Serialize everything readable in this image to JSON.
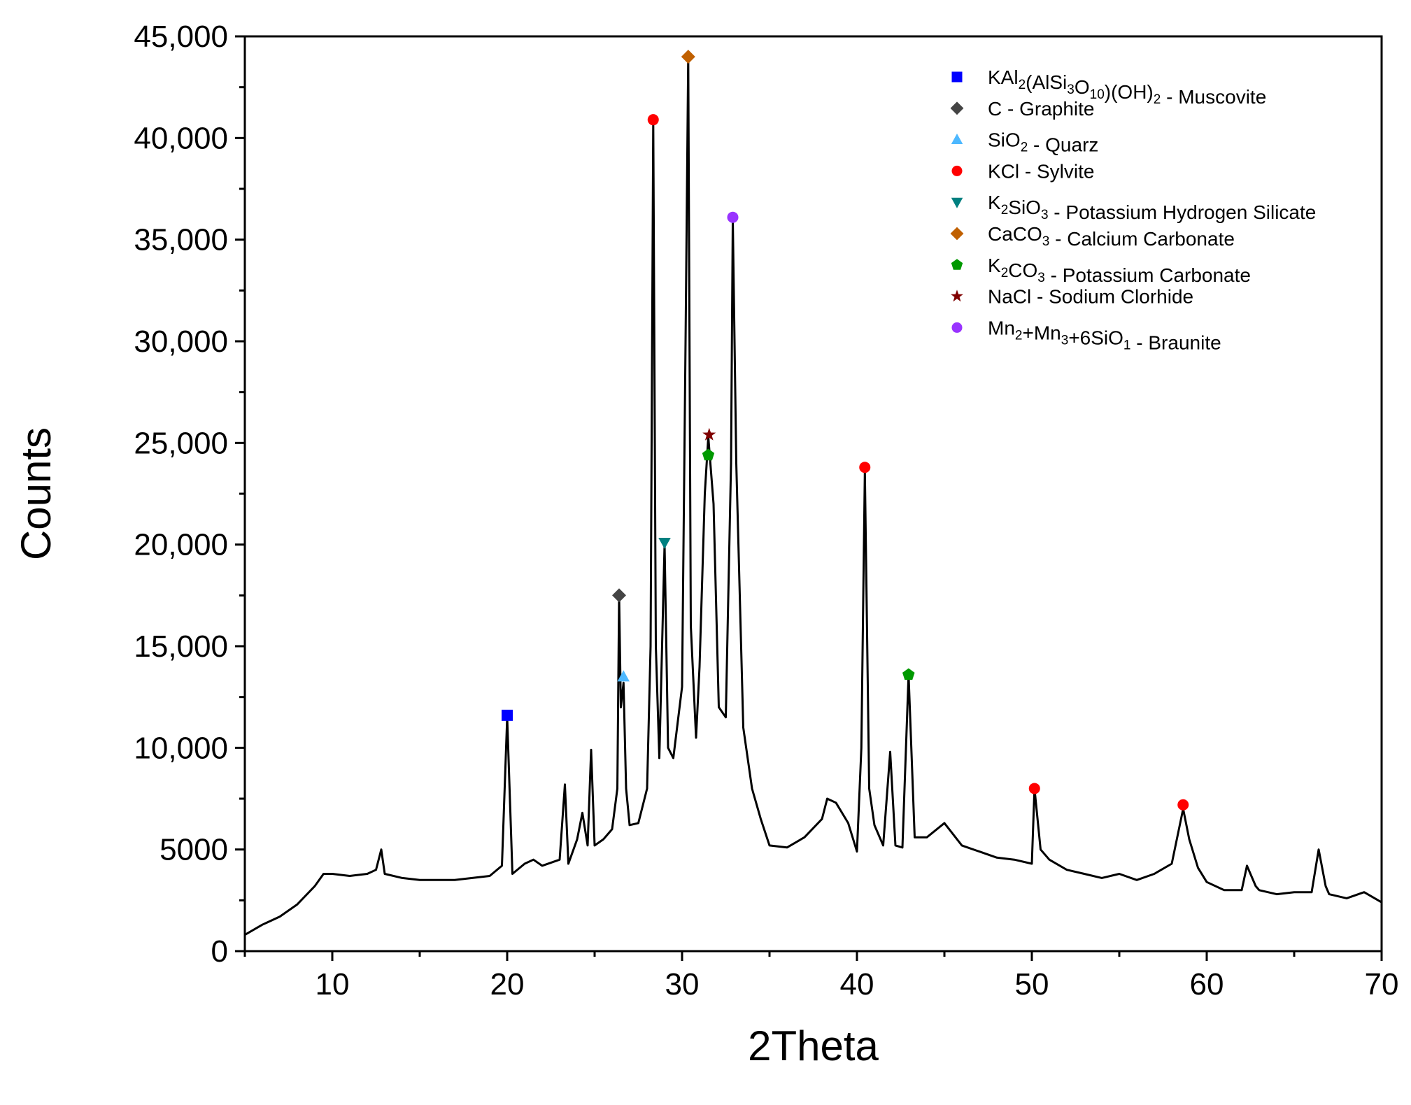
{
  "chart_data": {
    "type": "line",
    "xlabel": "2Theta",
    "ylabel": "Counts",
    "xlim": [
      5,
      70
    ],
    "ylim": [
      0,
      45000
    ],
    "x_ticks": [
      10,
      20,
      30,
      40,
      50,
      60,
      70
    ],
    "x_tick_labels": [
      "10",
      "20",
      "30",
      "40",
      "50",
      "60",
      "70"
    ],
    "y_ticks": [
      0,
      5000,
      10000,
      15000,
      20000,
      25000,
      30000,
      35000,
      40000,
      45000
    ],
    "y_tick_labels": [
      "0",
      "5000",
      "10,000",
      "15,000",
      "20,000",
      "25,000",
      "30,000",
      "35,000",
      "40,000",
      "45,000"
    ],
    "grid": false,
    "legend_position": "top-right",
    "line_color": "#000000",
    "series": [
      {
        "x": [
          5,
          6,
          7,
          8,
          9,
          9.5,
          10,
          11,
          12,
          12.5,
          12.8,
          13,
          14,
          15,
          16,
          17,
          18,
          19,
          19.7,
          20,
          20.3,
          21,
          21.5,
          22,
          23,
          23.3,
          23.5,
          24,
          24.3,
          24.6,
          24.8,
          25,
          25.5,
          26,
          26.3,
          26.4,
          26.5,
          26.65,
          26.8,
          27,
          27.5,
          28,
          28.2,
          28.35,
          28.5,
          28.7,
          29,
          29.2,
          29.5,
          30,
          30.2,
          30.35,
          30.5,
          30.8,
          31,
          31.3,
          31.5,
          31.8,
          32.1,
          32.5,
          32.8,
          32.9,
          33.1,
          33.5,
          34,
          34.5,
          35,
          36,
          37,
          38,
          38.3,
          38.8,
          39.5,
          40,
          40.25,
          40.45,
          40.7,
          41,
          41.5,
          41.9,
          42.2,
          42.6,
          42.95,
          43.3,
          44,
          45,
          46,
          47,
          48,
          49,
          50,
          50.15,
          50.5,
          51,
          52,
          53,
          54,
          55,
          56,
          57,
          58,
          58.65,
          59,
          59.5,
          60,
          61,
          62,
          62.3,
          62.8,
          63,
          64,
          65,
          66,
          66.4,
          66.8,
          67,
          68,
          69,
          70
        ],
        "y": [
          800,
          1300,
          1700,
          2300,
          3200,
          3800,
          3800,
          3700,
          3800,
          4000,
          5000,
          3800,
          3600,
          3500,
          3500,
          3500,
          3600,
          3700,
          4200,
          11500,
          3800,
          4300,
          4500,
          4200,
          4500,
          8200,
          4300,
          5500,
          6800,
          5200,
          9900,
          5200,
          5500,
          6000,
          8000,
          17500,
          12000,
          13200,
          8000,
          6200,
          6300,
          8000,
          15000,
          40800,
          15000,
          9500,
          20000,
          10000,
          9500,
          13000,
          30000,
          44000,
          16000,
          10500,
          14000,
          22500,
          25300,
          22000,
          12000,
          11500,
          24000,
          36000,
          24000,
          11000,
          8000,
          6500,
          5200,
          5100,
          5600,
          6500,
          7500,
          7300,
          6300,
          4900,
          10000,
          23600,
          8000,
          6200,
          5200,
          9800,
          5200,
          5100,
          13600,
          5600,
          5600,
          6300,
          5200,
          4900,
          4600,
          4500,
          4300,
          8000,
          5000,
          4500,
          4000,
          3800,
          3600,
          3800,
          3500,
          3800,
          4300,
          7000,
          5500,
          4100,
          3400,
          3000,
          3000,
          4200,
          3200,
          3000,
          2800,
          2900,
          2900,
          5000,
          3200,
          2800,
          2600,
          2900,
          2400
        ]
      }
    ],
    "markers": [
      {
        "x": 20.0,
        "y": 11600,
        "phase": 0
      },
      {
        "x": 26.4,
        "y": 17500,
        "phase": 1
      },
      {
        "x": 26.65,
        "y": 13500,
        "phase": 2
      },
      {
        "x": 28.35,
        "y": 40900,
        "phase": 3
      },
      {
        "x": 40.45,
        "y": 23800,
        "phase": 3
      },
      {
        "x": 50.15,
        "y": 8000,
        "phase": 3
      },
      {
        "x": 58.65,
        "y": 7200,
        "phase": 3
      },
      {
        "x": 29.0,
        "y": 20100,
        "phase": 4
      },
      {
        "x": 30.35,
        "y": 44000,
        "phase": 5
      },
      {
        "x": 31.5,
        "y": 24400,
        "phase": 6
      },
      {
        "x": 42.95,
        "y": 13600,
        "phase": 6
      },
      {
        "x": 31.55,
        "y": 25400,
        "phase": 7
      },
      {
        "x": 32.9,
        "y": 36100,
        "phase": 8
      }
    ],
    "legend": [
      {
        "name": "KAl2(AlSi3O10)(OH)2 - Muscovite",
        "parts": [
          [
            "KAl",
            ""
          ],
          [
            "2",
            "sub"
          ],
          [
            "(AlSi",
            ""
          ],
          [
            "3",
            "sub"
          ],
          [
            "O",
            ""
          ],
          [
            "10",
            "sub"
          ],
          [
            ")(OH)",
            ""
          ],
          [
            "2",
            "sub"
          ],
          [
            " - Muscovite",
            ""
          ]
        ],
        "marker": "square",
        "color": "#0000ff"
      },
      {
        "name": "C - Graphite",
        "parts": [
          [
            "C - Graphite",
            ""
          ]
        ],
        "marker": "diamond",
        "color": "#444444"
      },
      {
        "name": "SiO2 - Quarz",
        "parts": [
          [
            "SiO",
            ""
          ],
          [
            "2",
            "sub"
          ],
          [
            " - Quarz",
            ""
          ]
        ],
        "marker": "triangle-up",
        "color": "#4db8ff"
      },
      {
        "name": "KCl - Sylvite",
        "parts": [
          [
            "KCl - Sylvite",
            ""
          ]
        ],
        "marker": "circle",
        "color": "#ff0000"
      },
      {
        "name": "K2SiO3 - Potassium Hydrogen Silicate",
        "parts": [
          [
            "K",
            ""
          ],
          [
            "2",
            "sub"
          ],
          [
            "SiO",
            ""
          ],
          [
            "3",
            "sub"
          ],
          [
            " - Potassium Hydrogen Silicate",
            ""
          ]
        ],
        "marker": "triangle-down",
        "color": "#008080"
      },
      {
        "name": "CaCO3 - Calcium Carbonate",
        "parts": [
          [
            "CaCO",
            ""
          ],
          [
            "3",
            "sub"
          ],
          [
            " - Calcium Carbonate",
            ""
          ]
        ],
        "marker": "diamond",
        "color": "#c06000"
      },
      {
        "name": "K2CO3 - Potassium Carbonate",
        "parts": [
          [
            "K",
            ""
          ],
          [
            "2",
            "sub"
          ],
          [
            "CO",
            ""
          ],
          [
            "3",
            "sub"
          ],
          [
            " - Potassium Carbonate",
            ""
          ]
        ],
        "marker": "pentagon",
        "color": "#009900"
      },
      {
        "name": "NaCl - Sodium Clorhide",
        "parts": [
          [
            "NaCl - Sodium Clorhide",
            ""
          ]
        ],
        "marker": "star",
        "color": "#800000"
      },
      {
        "name": "Mn2+Mn3+6SiO1 - Braunite",
        "parts": [
          [
            "Mn",
            ""
          ],
          [
            "2",
            "sub"
          ],
          [
            "+Mn",
            ""
          ],
          [
            "3",
            "sub"
          ],
          [
            "+6SiO",
            ""
          ],
          [
            "1",
            "sub"
          ],
          [
            " - Braunite",
            ""
          ]
        ],
        "marker": "circle",
        "color": "#9933ff"
      }
    ]
  }
}
